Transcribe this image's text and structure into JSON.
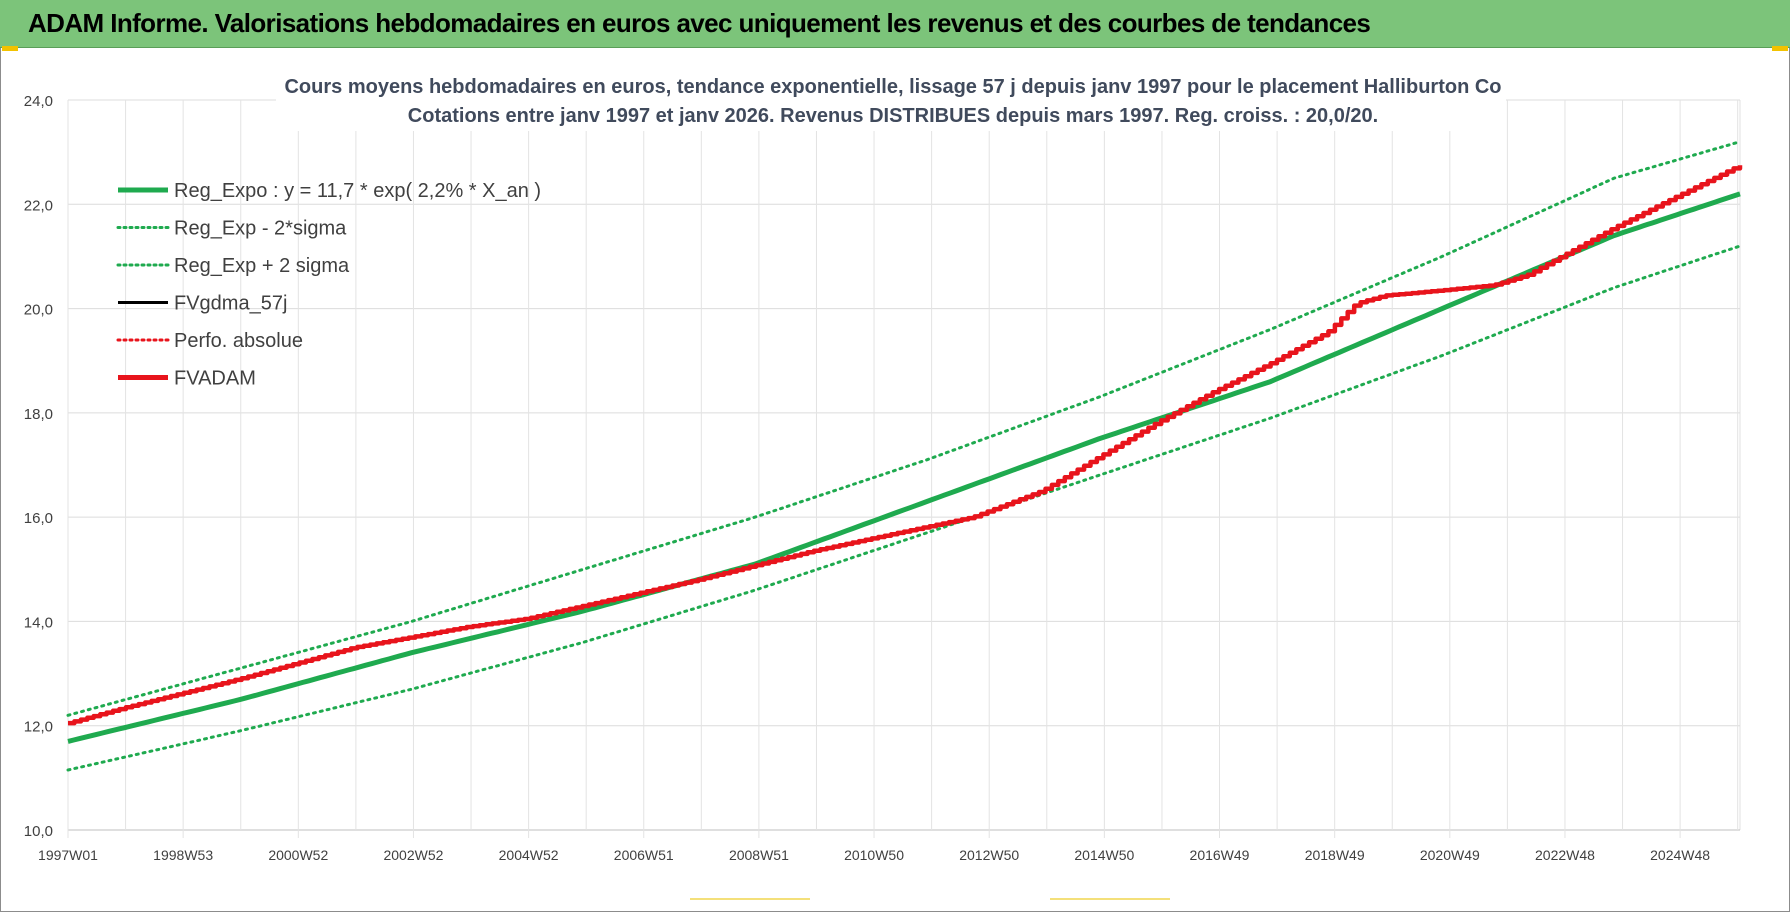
{
  "banner": {
    "title": "ADAM Informe. Valorisations hebdomadaires en euros avec uniquement les revenus et des courbes de tendances"
  },
  "colors": {
    "banner_bg": "#7cc47a",
    "green": "#1faa4f",
    "red": "#e8141c",
    "black": "#000000"
  },
  "chart_data": {
    "type": "line",
    "title_line1": "Cours moyens hebdomadaires en euros, tendance exponentielle, lissage 57 j depuis janv 1997 pour le placement Halliburton Co",
    "title_line2": "Cotations entre janv 1997 et janv 2026. Revenus DISTRIBUES depuis mars 1997. Reg. croiss. : 20,0/20.",
    "x_ticks": [
      "1997W01",
      "1998W53",
      "2000W52",
      "2002W52",
      "2004W52",
      "2006W51",
      "2008W51",
      "2010W50",
      "2012W50",
      "2014W50",
      "2016W49",
      "2018W49",
      "2020W49",
      "2022W48",
      "2024W48"
    ],
    "xlim": [
      1997.0,
      2026.2
    ],
    "ylim": [
      10,
      24
    ],
    "y_ticks": [
      "10,0",
      "12,0",
      "14,0",
      "16,0",
      "18,0",
      "20,0",
      "22,0",
      "24,0"
    ],
    "grid": true,
    "legend_position": "top-left",
    "legend": [
      {
        "label": "Reg_Expo : y = 11,7 * exp( 2,2% *  X_an )",
        "color": "#1faa4f",
        "style": "solid-thick"
      },
      {
        "label": "Reg_Exp - 2*sigma",
        "color": "#1faa4f",
        "style": "dotted"
      },
      {
        "label": "Reg_Exp + 2 sigma",
        "color": "#1faa4f",
        "style": "dotted"
      },
      {
        "label": "FVgdma_57j",
        "color": "#000000",
        "style": "solid"
      },
      {
        "label": "Perfo. absolue",
        "color": "#e8141c",
        "style": "dotted"
      },
      {
        "label": "FVADAM",
        "color": "#e8141c",
        "style": "solid-thick"
      }
    ],
    "series": [
      {
        "name": "Reg_Expo : y = 11,7 * exp( 2,2% *  X_an )",
        "x": [
          1997,
          2000,
          2003,
          2006,
          2009,
          2012,
          2015,
          2018,
          2021,
          2024,
          2026.2
        ],
        "y": [
          11.7,
          12.5,
          13.4,
          14.2,
          15.1,
          16.3,
          17.5,
          18.6,
          20.0,
          21.4,
          22.2
        ]
      },
      {
        "name": "Reg_Exp - 2*sigma",
        "x": [
          1997,
          2000,
          2003,
          2006,
          2009,
          2012,
          2015,
          2018,
          2021,
          2024,
          2026.2
        ],
        "y": [
          11.15,
          11.9,
          12.7,
          13.6,
          14.6,
          15.7,
          16.8,
          17.9,
          19.1,
          20.4,
          21.2
        ]
      },
      {
        "name": "Reg_Exp + 2 sigma",
        "x": [
          1997,
          2000,
          2003,
          2006,
          2009,
          2012,
          2015,
          2018,
          2021,
          2024,
          2026.2
        ],
        "y": [
          12.2,
          13.1,
          14.0,
          15.0,
          16.0,
          17.1,
          18.3,
          19.6,
          21.0,
          22.5,
          23.2
        ]
      },
      {
        "name": "FVADAM",
        "x": [
          1997,
          1998,
          2000,
          2002,
          2004,
          2005,
          2006,
          2008,
          2010,
          2011.5,
          2012.8,
          2014,
          2015,
          2016,
          2017,
          2018,
          2019,
          2019.5,
          2020,
          2021,
          2021.9,
          2022.5,
          2023,
          2024,
          2025,
          2026.2
        ],
        "y": [
          12.05,
          12.35,
          12.9,
          13.5,
          13.9,
          14.05,
          14.3,
          14.8,
          15.35,
          15.7,
          16.0,
          16.5,
          17.15,
          17.8,
          18.4,
          18.95,
          19.55,
          20.1,
          20.25,
          20.35,
          20.45,
          20.65,
          20.95,
          21.55,
          22.1,
          22.75
        ]
      }
    ]
  }
}
